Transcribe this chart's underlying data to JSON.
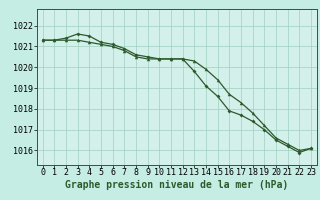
{
  "title": "Graphe pression niveau de la mer (hPa)",
  "background_color": "#c5ede3",
  "plot_bg_color": "#d4f0ea",
  "line_color": "#2d5a2d",
  "grid_color": "#9ecfbf",
  "ylim": [
    1015.3,
    1022.8
  ],
  "xlim": [
    -0.5,
    23.5
  ],
  "yticks": [
    1016,
    1017,
    1018,
    1019,
    1020,
    1021,
    1022
  ],
  "xticks": [
    0,
    1,
    2,
    3,
    4,
    5,
    6,
    7,
    8,
    9,
    10,
    11,
    12,
    13,
    14,
    15,
    16,
    17,
    18,
    19,
    20,
    21,
    22,
    23
  ],
  "series1": {
    "x": [
      0,
      1,
      2,
      3,
      4,
      5,
      6,
      7,
      8,
      9,
      10,
      11,
      12,
      13,
      14,
      15,
      16,
      17,
      18,
      19,
      20,
      21,
      22,
      23
    ],
    "y": [
      1021.3,
      1021.3,
      1021.4,
      1021.6,
      1021.5,
      1021.2,
      1021.1,
      1020.9,
      1020.6,
      1020.5,
      1020.4,
      1020.4,
      1020.4,
      1019.8,
      1019.1,
      1018.6,
      1017.9,
      1017.7,
      1017.4,
      1017.0,
      1016.5,
      1016.2,
      1015.9,
      1016.1
    ]
  },
  "series2": {
    "x": [
      0,
      1,
      2,
      3,
      4,
      5,
      6,
      7,
      8,
      9,
      10,
      11,
      12,
      13,
      14,
      15,
      16,
      17,
      18,
      19,
      20,
      21,
      22,
      23
    ],
    "y": [
      1021.3,
      1021.3,
      1021.3,
      1021.3,
      1021.2,
      1021.1,
      1021.0,
      1020.8,
      1020.5,
      1020.4,
      1020.4,
      1020.4,
      1020.4,
      1020.3,
      1019.9,
      1019.4,
      1018.7,
      1018.3,
      1017.8,
      1017.2,
      1016.6,
      1016.3,
      1016.0,
      1016.1
    ]
  },
  "title_fontsize": 7.0,
  "tick_fontsize": 6.0
}
